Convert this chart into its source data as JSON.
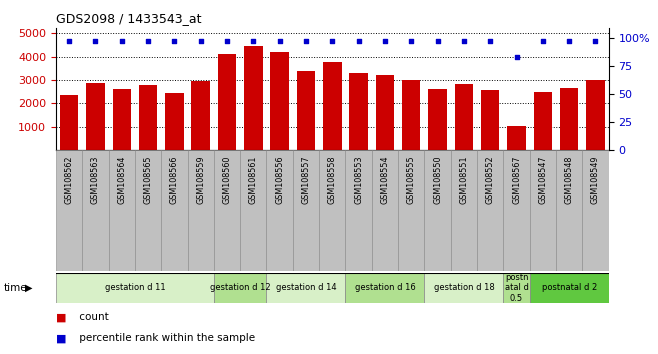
{
  "title": "GDS2098 / 1433543_at",
  "samples": [
    "GSM108562",
    "GSM108563",
    "GSM108564",
    "GSM108565",
    "GSM108566",
    "GSM108559",
    "GSM108560",
    "GSM108561",
    "GSM108556",
    "GSM108557",
    "GSM108558",
    "GSM108553",
    "GSM108554",
    "GSM108555",
    "GSM108550",
    "GSM108551",
    "GSM108552",
    "GSM108567",
    "GSM108547",
    "GSM108548",
    "GSM108549"
  ],
  "counts": [
    2380,
    2860,
    2600,
    2800,
    2460,
    2960,
    4100,
    4430,
    4200,
    3400,
    3780,
    3310,
    3200,
    3000,
    2620,
    2850,
    2580,
    1020,
    2470,
    2680,
    3000
  ],
  "percentile_ranks": [
    97,
    97,
    97,
    97,
    97,
    97,
    97,
    97,
    97,
    97,
    97,
    97,
    97,
    97,
    97,
    97,
    97,
    83,
    97,
    97,
    97
  ],
  "groups": [
    {
      "label": "gestation d 11",
      "start": 0,
      "end": 5,
      "color": "#d8f0c8"
    },
    {
      "label": "gestation d 12",
      "start": 6,
      "end": 7,
      "color": "#b0e090"
    },
    {
      "label": "gestation d 14",
      "start": 8,
      "end": 10,
      "color": "#d8f0c8"
    },
    {
      "label": "gestation d 16",
      "start": 11,
      "end": 13,
      "color": "#b0e090"
    },
    {
      "label": "gestation d 18",
      "start": 14,
      "end": 16,
      "color": "#d8f0c8"
    },
    {
      "label": "postn\natal d\n0.5",
      "start": 17,
      "end": 17,
      "color": "#b0e090"
    },
    {
      "label": "postnatal d 2",
      "start": 18,
      "end": 20,
      "color": "#60c840"
    }
  ],
  "bar_color": "#cc0000",
  "dot_color": "#0000cc",
  "ylim_left": [
    0,
    5200
  ],
  "ylim_right": [
    0,
    108.16
  ],
  "yticks_left": [
    1000,
    2000,
    3000,
    4000,
    5000
  ],
  "yticks_right": [
    0,
    25,
    50,
    75,
    100
  ],
  "ylabel_left_color": "#cc0000",
  "ylabel_right_color": "#0000cc",
  "legend_count_color": "#cc0000",
  "legend_pct_color": "#0000cc",
  "tick_bg_color": "#c0c0c0",
  "fig_width": 6.58,
  "fig_height": 3.54,
  "dpi": 100
}
